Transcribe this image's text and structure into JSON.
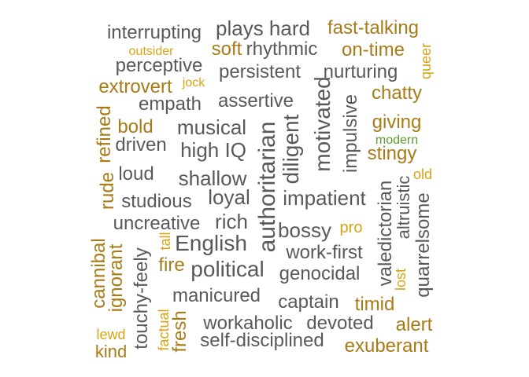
{
  "colors": {
    "gray": "#595959",
    "brown": "#a87b16",
    "gold": "#d9a314",
    "green": "#5e9b2c"
  },
  "words": [
    {
      "text": "interrupting"
    },
    {
      "text": "plays hard"
    },
    {
      "text": "fast-talking"
    },
    {
      "text": "outsider"
    },
    {
      "text": "soft"
    },
    {
      "text": "rhythmic"
    },
    {
      "text": "on-time"
    },
    {
      "text": "queer"
    },
    {
      "text": "perceptive"
    },
    {
      "text": "persistent"
    },
    {
      "text": "nurturing"
    },
    {
      "text": "extrovert"
    },
    {
      "text": "jock"
    },
    {
      "text": "chatty"
    },
    {
      "text": "empath"
    },
    {
      "text": "assertive"
    },
    {
      "text": "refined"
    },
    {
      "text": "bold"
    },
    {
      "text": "musical"
    },
    {
      "text": "motivated"
    },
    {
      "text": "impulsive"
    },
    {
      "text": "giving"
    },
    {
      "text": "modern"
    },
    {
      "text": "driven"
    },
    {
      "text": "high IQ"
    },
    {
      "text": "authoritarian"
    },
    {
      "text": "diligent"
    },
    {
      "text": "stingy"
    },
    {
      "text": "loud"
    },
    {
      "text": "shallow"
    },
    {
      "text": "old"
    },
    {
      "text": "rude"
    },
    {
      "text": "studious"
    },
    {
      "text": "loyal"
    },
    {
      "text": "impatient"
    },
    {
      "text": "altruistic"
    },
    {
      "text": "valedictorian"
    },
    {
      "text": "quarrelsome"
    },
    {
      "text": "uncreative"
    },
    {
      "text": "rich"
    },
    {
      "text": "pro"
    },
    {
      "text": "bossy"
    },
    {
      "text": "English"
    },
    {
      "text": "tall"
    },
    {
      "text": "cannibal"
    },
    {
      "text": "ignorant"
    },
    {
      "text": "touchy-feely"
    },
    {
      "text": "work-first"
    },
    {
      "text": "fire"
    },
    {
      "text": "political"
    },
    {
      "text": "genocidal"
    },
    {
      "text": "lost"
    },
    {
      "text": "manicured"
    },
    {
      "text": "captain"
    },
    {
      "text": "timid"
    },
    {
      "text": "factual"
    },
    {
      "text": "fresh"
    },
    {
      "text": "workaholic"
    },
    {
      "text": "devoted"
    },
    {
      "text": "alert"
    },
    {
      "text": "lewd"
    },
    {
      "text": "self-disciplined"
    },
    {
      "text": "exuberant"
    },
    {
      "text": "kind"
    }
  ]
}
